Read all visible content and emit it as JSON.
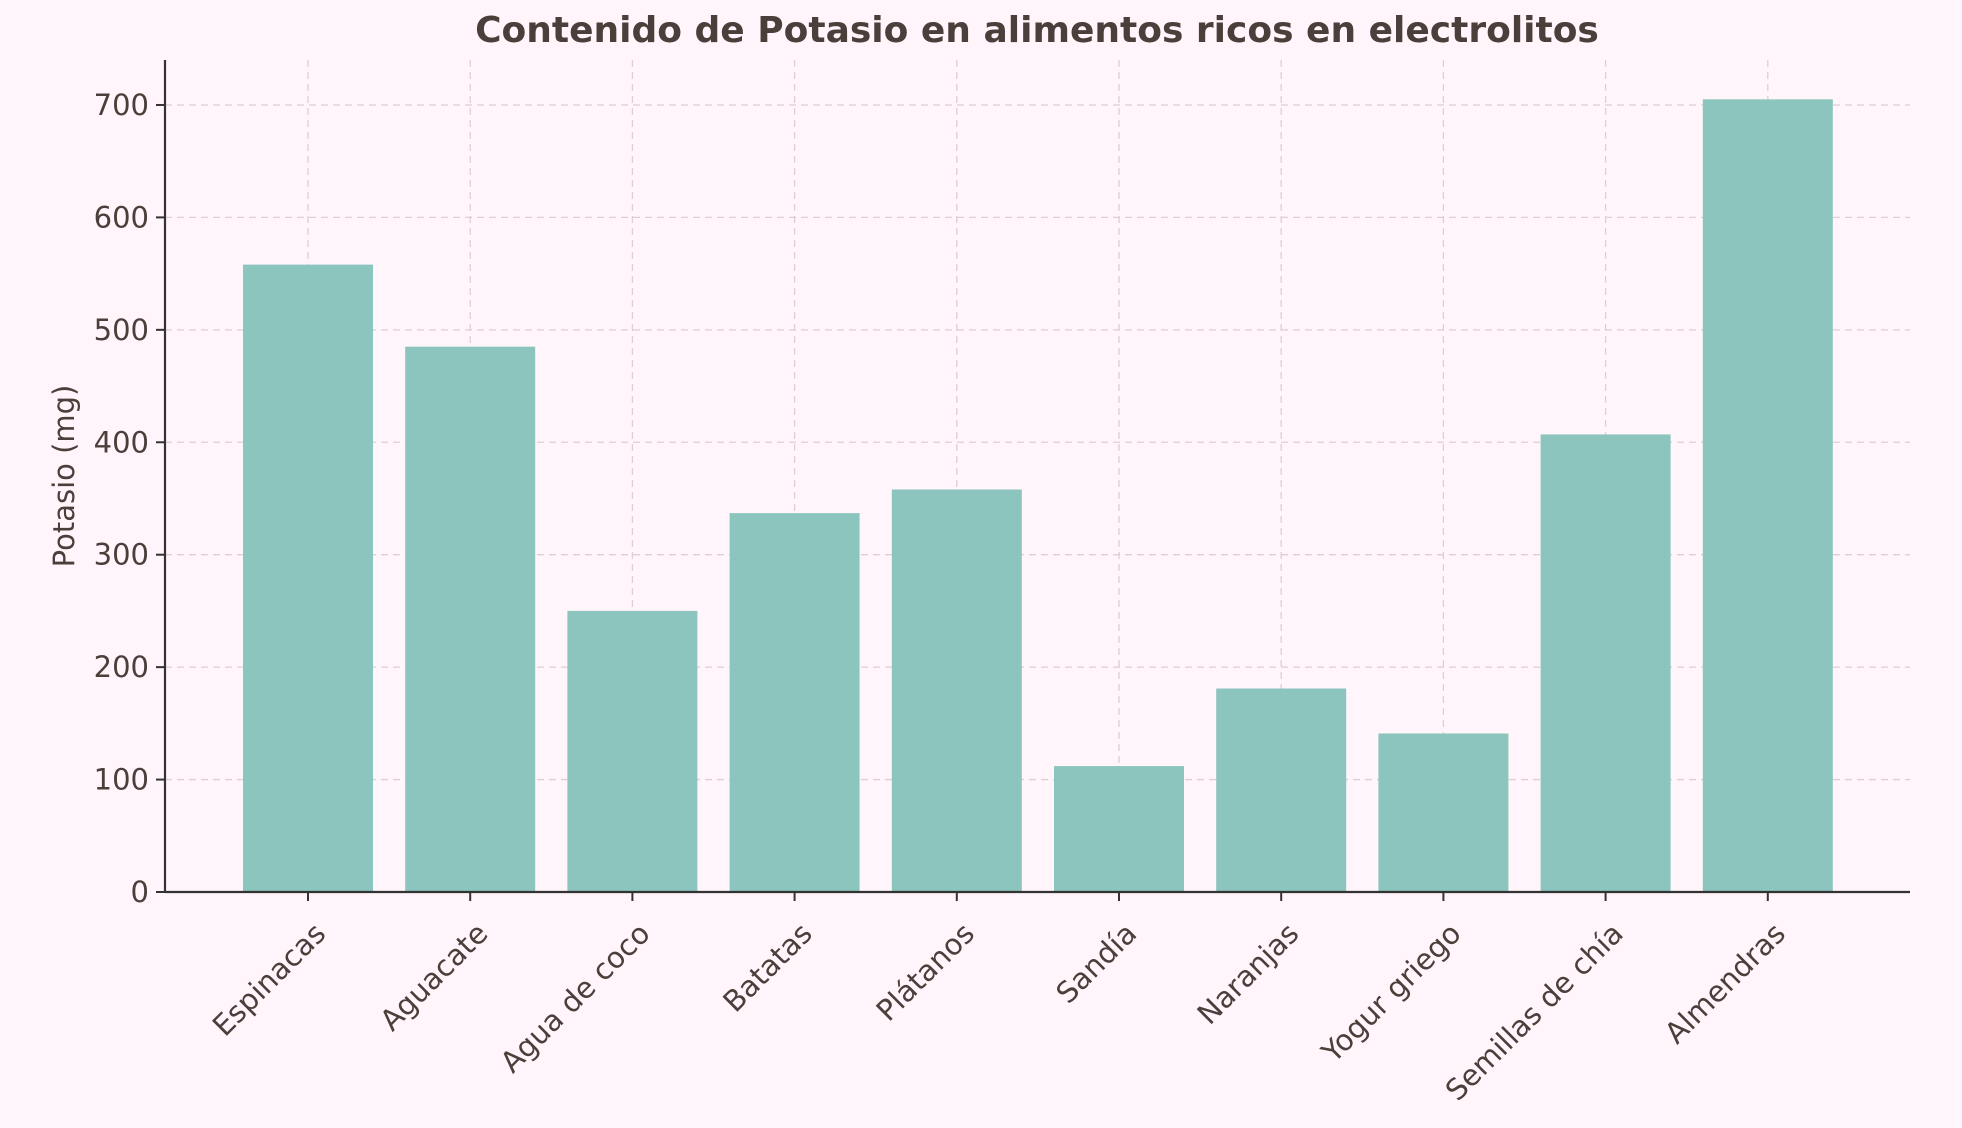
{
  "chart_data": {
    "type": "bar",
    "title": "Contenido de Potasio en alimentos ricos en electrolitos",
    "xlabel": "",
    "ylabel": "Potasio (mg)",
    "categories": [
      "Espinacas",
      "Aguacate",
      "Agua de coco",
      "Batatas",
      "Plátanos",
      "Sandía",
      "Naranjas",
      "Yogur griego",
      "Semillas de chía",
      "Almendras"
    ],
    "values": [
      558,
      485,
      250,
      337,
      358,
      112,
      181,
      141,
      407,
      705
    ],
    "ylim": [
      0,
      740
    ],
    "yticks": [
      0,
      100,
      200,
      300,
      400,
      500,
      600,
      700
    ],
    "grid": true,
    "legend": "none",
    "colors": {
      "background": "#fff5fb",
      "bar": "#8ac4bd",
      "text": "#4a3f3a",
      "axis": "#333333",
      "grid": "#dccfd6"
    }
  }
}
